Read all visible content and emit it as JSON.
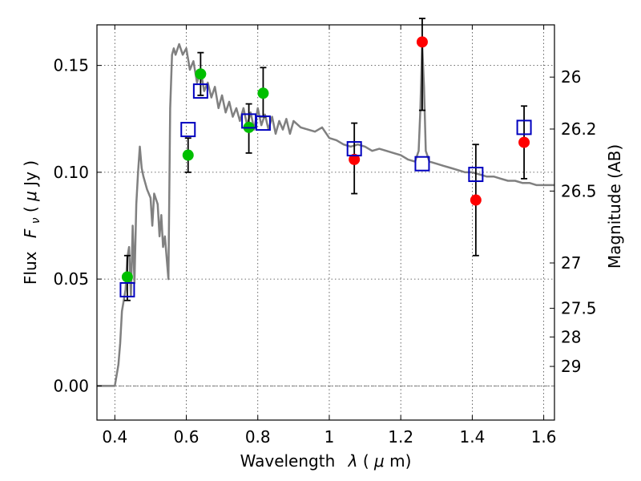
{
  "chart_data": {
    "type": "scatter",
    "xlabel_text": "Wavelength",
    "xlabel_symbol": "λ",
    "xlabel_unit_open": " (",
    "xlabel_unit_mu": "μ",
    "xlabel_unit_rest": "m)",
    "ylabel_text": "Flux",
    "ylabel_symbol": "F",
    "ylabel_sub": "ν",
    "ylabel_unit_open": " ( ",
    "ylabel_unit_mu": "μ",
    "ylabel_unit_rest": "Jy )",
    "y2label": "Magnitude (AB)",
    "xlim": [
      0.35,
      1.63
    ],
    "ylim": [
      -0.016,
      0.169
    ],
    "xticks": [
      {
        "v": 0.4,
        "label": "0.4"
      },
      {
        "v": 0.6,
        "label": "0.6"
      },
      {
        "v": 0.8,
        "label": "0.8"
      },
      {
        "v": 1.0,
        "label": "1"
      },
      {
        "v": 1.2,
        "label": "1.2"
      },
      {
        "v": 1.4,
        "label": "1.4"
      },
      {
        "v": 1.6,
        "label": "1.6"
      }
    ],
    "yticks": [
      {
        "v": 0.0,
        "label": "0.00"
      },
      {
        "v": 0.05,
        "label": "0.05"
      },
      {
        "v": 0.1,
        "label": "0.10"
      },
      {
        "v": 0.15,
        "label": "0.15"
      }
    ],
    "y2ticks": [
      {
        "mag": 26,
        "label": "26"
      },
      {
        "mag": 26.2,
        "label": "26.2"
      },
      {
        "mag": 26.5,
        "label": "26.5"
      },
      {
        "mag": 27,
        "label": "27"
      },
      {
        "mag": 27.5,
        "label": "27.5"
      },
      {
        "mag": 28,
        "label": "28"
      },
      {
        "mag": 29,
        "label": "29"
      }
    ],
    "grid": true,
    "model": {
      "color": "#808080",
      "x": [
        0.35,
        0.4,
        0.41,
        0.415,
        0.42,
        0.43,
        0.435,
        0.44,
        0.445,
        0.45,
        0.455,
        0.46,
        0.465,
        0.47,
        0.475,
        0.48,
        0.49,
        0.5,
        0.505,
        0.51,
        0.52,
        0.525,
        0.53,
        0.535,
        0.54,
        0.545,
        0.55,
        0.555,
        0.56,
        0.565,
        0.57,
        0.58,
        0.59,
        0.6,
        0.61,
        0.62,
        0.63,
        0.64,
        0.65,
        0.66,
        0.67,
        0.68,
        0.69,
        0.7,
        0.71,
        0.72,
        0.73,
        0.74,
        0.75,
        0.76,
        0.77,
        0.78,
        0.79,
        0.8,
        0.81,
        0.82,
        0.83,
        0.84,
        0.85,
        0.86,
        0.87,
        0.88,
        0.89,
        0.9,
        0.92,
        0.94,
        0.96,
        0.98,
        1.0,
        1.02,
        1.04,
        1.06,
        1.08,
        1.1,
        1.12,
        1.14,
        1.16,
        1.18,
        1.2,
        1.22,
        1.24,
        1.25,
        1.255,
        1.26,
        1.265,
        1.27,
        1.28,
        1.3,
        1.32,
        1.34,
        1.36,
        1.38,
        1.4,
        1.42,
        1.44,
        1.46,
        1.48,
        1.5,
        1.52,
        1.54,
        1.56,
        1.58,
        1.6,
        1.63
      ],
      "y": [
        0.0,
        0.0,
        0.01,
        0.02,
        0.035,
        0.045,
        0.06,
        0.065,
        0.042,
        0.075,
        0.048,
        0.085,
        0.1,
        0.112,
        0.102,
        0.098,
        0.092,
        0.088,
        0.075,
        0.09,
        0.085,
        0.07,
        0.08,
        0.065,
        0.07,
        0.06,
        0.05,
        0.13,
        0.155,
        0.158,
        0.155,
        0.16,
        0.155,
        0.158,
        0.148,
        0.152,
        0.142,
        0.148,
        0.138,
        0.142,
        0.135,
        0.14,
        0.13,
        0.136,
        0.128,
        0.133,
        0.126,
        0.13,
        0.124,
        0.13,
        0.122,
        0.128,
        0.12,
        0.13,
        0.122,
        0.127,
        0.12,
        0.126,
        0.118,
        0.124,
        0.12,
        0.125,
        0.118,
        0.124,
        0.121,
        0.12,
        0.119,
        0.121,
        0.116,
        0.115,
        0.113,
        0.112,
        0.113,
        0.112,
        0.11,
        0.111,
        0.11,
        0.109,
        0.108,
        0.106,
        0.105,
        0.11,
        0.13,
        0.16,
        0.14,
        0.11,
        0.105,
        0.104,
        0.103,
        0.102,
        0.101,
        0.1,
        0.1,
        0.099,
        0.098,
        0.098,
        0.097,
        0.096,
        0.096,
        0.095,
        0.095,
        0.094,
        0.094,
        0.094
      ]
    },
    "series": [
      {
        "marker": "circle-filled",
        "color": "#00bf00",
        "points": [
          {
            "x": 0.435,
            "y": 0.051
          },
          {
            "x": 0.605,
            "y": 0.108
          },
          {
            "x": 0.64,
            "y": 0.146
          },
          {
            "x": 0.775,
            "y": 0.121
          },
          {
            "x": 0.815,
            "y": 0.137
          }
        ]
      },
      {
        "marker": "circle-filled",
        "color": "#ff0000",
        "points": [
          {
            "x": 1.07,
            "y": 0.106
          },
          {
            "x": 1.26,
            "y": 0.161
          },
          {
            "x": 1.41,
            "y": 0.087
          },
          {
            "x": 1.545,
            "y": 0.114
          }
        ]
      },
      {
        "marker": "square-open",
        "color": "#0000bf",
        "points": [
          {
            "x": 0.435,
            "y": 0.045
          },
          {
            "x": 0.605,
            "y": 0.12
          },
          {
            "x": 0.64,
            "y": 0.138
          },
          {
            "x": 0.775,
            "y": 0.124
          },
          {
            "x": 0.815,
            "y": 0.123
          },
          {
            "x": 1.07,
            "y": 0.111
          },
          {
            "x": 1.26,
            "y": 0.104
          },
          {
            "x": 1.41,
            "y": 0.099
          },
          {
            "x": 1.545,
            "y": 0.121
          }
        ]
      }
    ],
    "errorbars": [
      {
        "x": 0.435,
        "low": 0.04,
        "high": 0.061
      },
      {
        "x": 0.605,
        "low": 0.1,
        "high": 0.116
      },
      {
        "x": 0.64,
        "low": 0.136,
        "high": 0.156
      },
      {
        "x": 0.775,
        "low": 0.109,
        "high": 0.132
      },
      {
        "x": 0.815,
        "low": 0.126,
        "high": 0.149
      },
      {
        "x": 1.07,
        "low": 0.09,
        "high": 0.123
      },
      {
        "x": 1.26,
        "low": 0.129,
        "high": 0.172
      },
      {
        "x": 1.41,
        "low": 0.061,
        "high": 0.113
      },
      {
        "x": 1.545,
        "low": 0.097,
        "high": 0.131
      }
    ]
  }
}
